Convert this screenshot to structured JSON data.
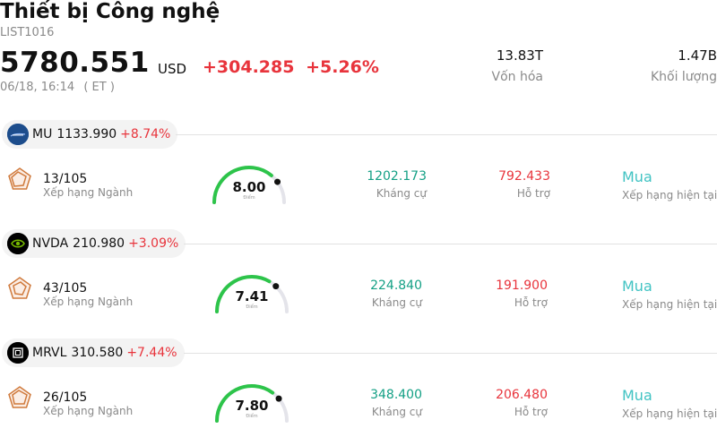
{
  "header": {
    "title": "Thiết bị Công nghệ",
    "code": "LIST1016",
    "price": "5780.551",
    "currency": "USD",
    "change": "+304.285",
    "change_pct": "+5.26%",
    "time": "06/18, 16:14",
    "timezone": "( ET )"
  },
  "stats": {
    "market_cap": {
      "value": "13.83T",
      "label": "Vốn hóa"
    },
    "volume": {
      "value": "1.47B",
      "label": "Khối lượng"
    }
  },
  "colors": {
    "up": "#e8343c",
    "resistance": "#14a085",
    "rating": "#41c3c3",
    "gauge_green": "#2dc44a"
  },
  "stocks": [
    {
      "symbol": "MU",
      "price": "1133.990",
      "change_pct": "+8.74%",
      "logo_icon": "micron-logo-icon",
      "rank": "13/105",
      "rank_label": "Xếp hạng Ngành",
      "score": "8.00",
      "score_value": 8.0,
      "score_label": "Điểm",
      "resistance": "1202.173",
      "resistance_label": "Kháng cự",
      "support": "792.433",
      "support_label": "Hỗ trợ",
      "rating": "Mua",
      "rating_label": "Xếp hạng hiện tại"
    },
    {
      "symbol": "NVDA",
      "price": "210.980",
      "change_pct": "+3.09%",
      "logo_icon": "nvidia-logo-icon",
      "rank": "43/105",
      "rank_label": "Xếp hạng Ngành",
      "score": "7.41",
      "score_value": 7.41,
      "score_label": "Điểm",
      "resistance": "224.840",
      "resistance_label": "Kháng cự",
      "support": "191.900",
      "support_label": "Hỗ trợ",
      "rating": "Mua",
      "rating_label": "Xếp hạng hiện tại"
    },
    {
      "symbol": "MRVL",
      "price": "310.580",
      "change_pct": "+7.44%",
      "logo_icon": "marvell-logo-icon",
      "rank": "26/105",
      "rank_label": "Xếp hạng Ngành",
      "score": "7.80",
      "score_value": 7.8,
      "score_label": "Điểm",
      "resistance": "348.400",
      "resistance_label": "Kháng cự",
      "support": "206.480",
      "support_label": "Hỗ trợ",
      "rating": "Mua",
      "rating_label": "Xếp hạng hiện tại"
    }
  ]
}
